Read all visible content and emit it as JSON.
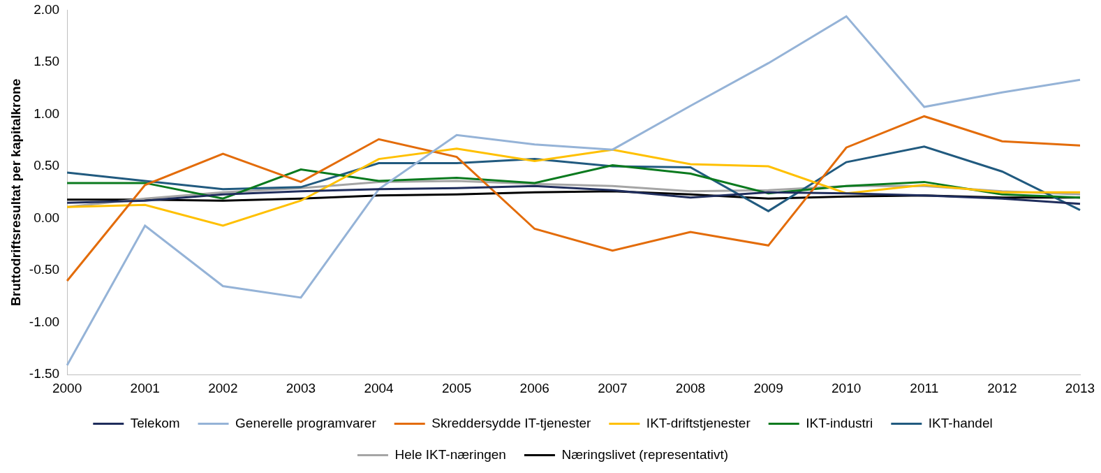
{
  "chart_data": {
    "type": "line",
    "y_label": "Bruttodriftsresultat per kapitalkrone",
    "categories": [
      "2000",
      "2001",
      "2002",
      "2003",
      "2004",
      "2005",
      "2006",
      "2007",
      "2008",
      "2009",
      "2010",
      "2011",
      "2012",
      "2013"
    ],
    "ylim": [
      -1.5,
      2.0
    ],
    "yticks": [
      {
        "value": -1.5,
        "label": "-1.50"
      },
      {
        "value": -1.0,
        "label": "-1.00"
      },
      {
        "value": -0.5,
        "label": "-0.50"
      },
      {
        "value": 0,
        "label": "0.00"
      },
      {
        "value": 0.5,
        "label": "0.50"
      },
      {
        "value": 1.0,
        "label": "1.00"
      },
      {
        "value": 1.5,
        "label": "1.50"
      },
      {
        "value": 2.0,
        "label": "2.00"
      }
    ],
    "grid": false,
    "legend": "bottom",
    "series": [
      {
        "name": "Telekom",
        "color": "#1f2d5c",
        "values": [
          0.15,
          0.17,
          0.23,
          0.26,
          0.28,
          0.29,
          0.31,
          0.27,
          0.2,
          0.25,
          0.24,
          0.22,
          0.19,
          0.14
        ]
      },
      {
        "name": "Generelle programvarer",
        "color": "#95b3d7",
        "values": [
          -1.41,
          -0.07,
          -0.65,
          -0.76,
          0.28,
          0.8,
          0.71,
          0.66,
          1.08,
          1.49,
          1.94,
          1.07,
          1.21,
          1.33
        ]
      },
      {
        "name": "Skreddersydde IT-tjenester",
        "color": "#e36c0a",
        "values": [
          -0.6,
          0.32,
          0.62,
          0.35,
          0.76,
          0.59,
          -0.1,
          -0.31,
          -0.13,
          -0.26,
          0.68,
          0.98,
          0.74,
          0.7
        ]
      },
      {
        "name": "IKT-driftstjenester",
        "color": "#ffc000",
        "values": [
          0.11,
          0.13,
          -0.07,
          0.17,
          0.57,
          0.67,
          0.55,
          0.66,
          0.52,
          0.5,
          0.24,
          0.32,
          0.25,
          0.25
        ]
      },
      {
        "name": "IKT-industri",
        "color": "#0a7a1e",
        "values": [
          0.34,
          0.34,
          0.19,
          0.47,
          0.36,
          0.39,
          0.34,
          0.51,
          0.43,
          0.24,
          0.31,
          0.35,
          0.23,
          0.2
        ]
      },
      {
        "name": "IKT-handel",
        "color": "#215a7f",
        "values": [
          0.44,
          0.36,
          0.28,
          0.3,
          0.53,
          0.53,
          0.57,
          0.5,
          0.49,
          0.07,
          0.54,
          0.69,
          0.45,
          0.08
        ]
      },
      {
        "name": "Hele IKT-næringen",
        "color": "#a5a5a5",
        "values": [
          0.11,
          0.19,
          0.25,
          0.29,
          0.35,
          0.36,
          0.33,
          0.31,
          0.26,
          0.27,
          0.31,
          0.31,
          0.26,
          0.23
        ]
      },
      {
        "name": "Næringslivet (representativt)",
        "color": "#000000",
        "values": [
          0.18,
          0.18,
          0.17,
          0.19,
          0.22,
          0.23,
          0.25,
          0.26,
          0.23,
          0.19,
          0.21,
          0.22,
          0.2,
          0.2
        ]
      }
    ]
  }
}
